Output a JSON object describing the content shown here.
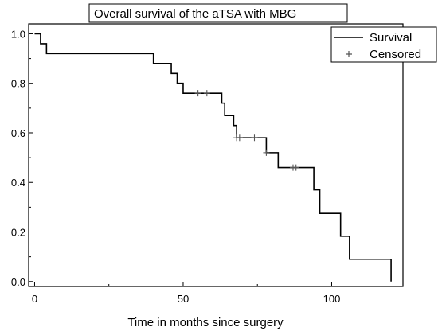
{
  "chart_data": {
    "type": "line",
    "title": "Overall survival of the aTSA with MBG",
    "xlabel": "Time in months since surgery",
    "ylabel": "",
    "xlim": [
      -2,
      124
    ],
    "ylim": [
      -0.02,
      1.04
    ],
    "x_ticks": [
      0,
      50,
      100
    ],
    "y_ticks": [
      0.0,
      0.2,
      0.4,
      0.6,
      0.8,
      1.0
    ],
    "y_tick_labels": [
      "0.0",
      "0.2",
      "0.4",
      "0.6",
      "0.8",
      "1.0"
    ],
    "grid": false,
    "legend_position": "top-right",
    "series": [
      {
        "name": "Survival",
        "style": "step",
        "color": "#000000",
        "x": [
          0,
          2,
          4,
          40,
          46,
          48,
          50,
          63,
          64,
          67,
          68,
          77,
          78,
          82,
          94,
          96,
          103,
          106,
          120
        ],
        "y": [
          1.0,
          0.96,
          0.92,
          0.88,
          0.84,
          0.8,
          0.76,
          0.72,
          0.67,
          0.63,
          0.58,
          0.58,
          0.52,
          0.46,
          0.37,
          0.275,
          0.183,
          0.09,
          0.0
        ]
      },
      {
        "name": "Censored",
        "style": "marker-plus",
        "color": "#000000",
        "x": [
          55,
          58,
          68,
          69,
          74,
          78,
          87,
          88
        ],
        "y": [
          0.76,
          0.76,
          0.58,
          0.58,
          0.58,
          0.52,
          0.46,
          0.46
        ]
      }
    ]
  }
}
